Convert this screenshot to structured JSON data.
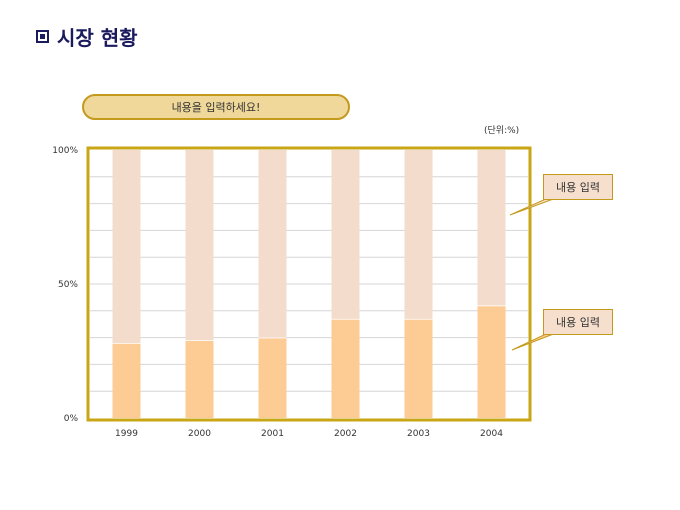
{
  "header": {
    "title": "시장 현황"
  },
  "input_pill": {
    "text": "내용을 입력하세요!"
  },
  "unit": "(단위:%)",
  "callouts": {
    "top": "내용 입력",
    "bottom": "내용 입력"
  },
  "colors": {
    "title": "#1a1a5e",
    "frame": "#c9a615",
    "bar_base": "#fdcb94",
    "bar_rest": "#f3dccb",
    "pill_fill": "#efd89a",
    "pill_border": "#c49a1c"
  },
  "chart_data": {
    "type": "bar",
    "stacked": true,
    "categories": [
      "1999",
      "2000",
      "2001",
      "2002",
      "2003",
      "2004"
    ],
    "series": [
      {
        "values": [
          28,
          29,
          30,
          37,
          37,
          42
        ]
      },
      {
        "values": [
          72,
          71,
          70,
          63,
          63,
          58
        ]
      }
    ],
    "y_ticks": [
      "0%",
      "50%",
      "100%"
    ],
    "ylim": [
      0,
      100
    ],
    "grid": true,
    "legend": "none"
  }
}
